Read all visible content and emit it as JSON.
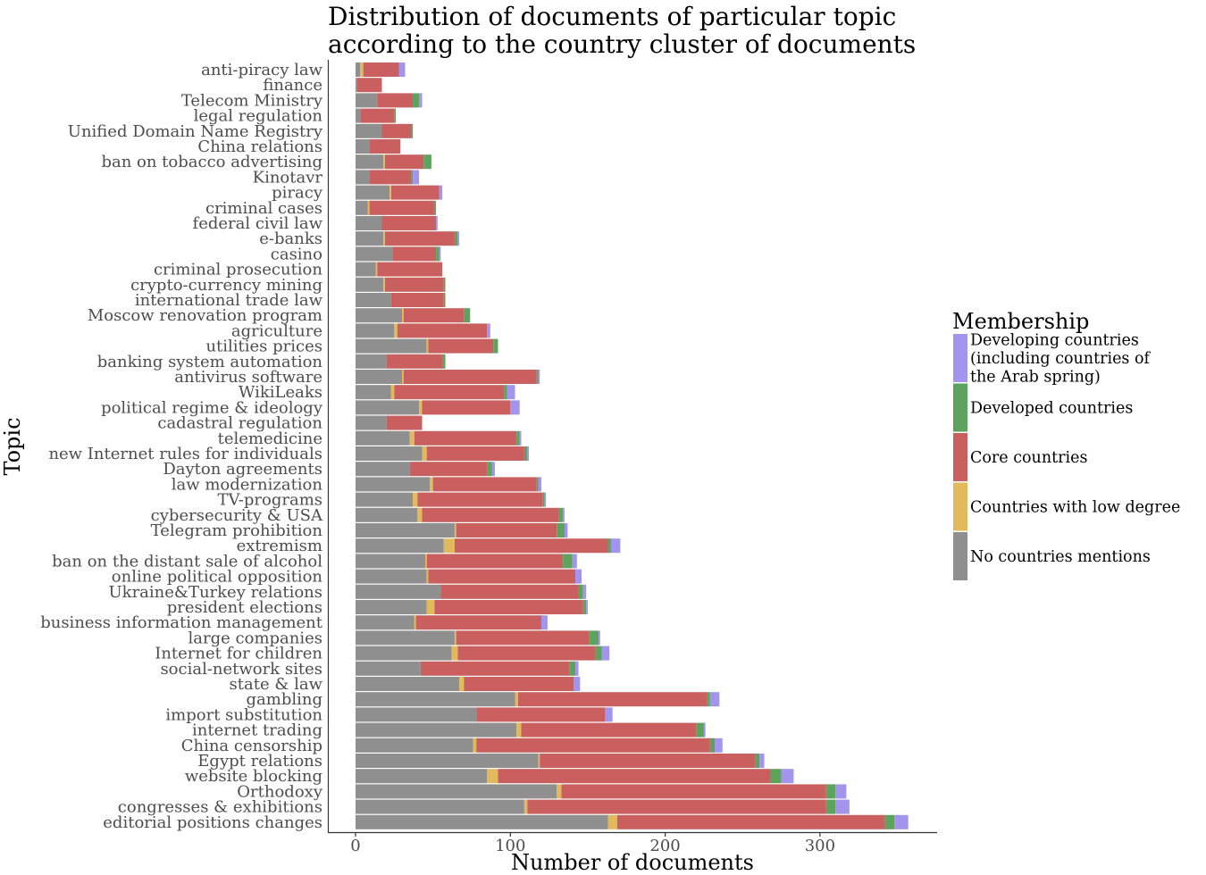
{
  "chart_data": {
    "type": "bar",
    "orientation": "horizontal",
    "stacked": true,
    "title_lines": [
      "Distribution of documents of particular topic",
      "according to the country cluster of documents"
    ],
    "xlabel": "Number of documents",
    "ylabel": "Topic",
    "xlim": [
      0,
      374
    ],
    "x_ticks": [
      0,
      100,
      200,
      300
    ],
    "grid": false,
    "legend": {
      "title": "Membership",
      "position": "right",
      "items": [
        {
          "lines": [
            "Developing countries",
            "(including countries of",
            "the Arab spring)"
          ],
          "color": "#A394EE"
        },
        {
          "lines": [
            "Developed countries"
          ],
          "color": "#5DA25D"
        },
        {
          "lines": [
            "Core countries"
          ],
          "color": "#C95F5F"
        },
        {
          "lines": [
            "Countries with low degree"
          ],
          "color": "#E2BA5E"
        },
        {
          "lines": [
            "No countries mentions"
          ],
          "color": "#8F8F8F"
        }
      ]
    },
    "series": [
      {
        "name": "No countries mentions",
        "color": "#8F8F8F"
      },
      {
        "name": "Countries with low degree",
        "color": "#E2BA5E"
      },
      {
        "name": "Core countries",
        "color": "#C95F5F"
      },
      {
        "name": "Developed countries",
        "color": "#5DA25D"
      },
      {
        "name": "Developing countries (including countries of the Arab spring)",
        "color": "#A394EE"
      }
    ],
    "rows": [
      {
        "topic": "anti-piracy law",
        "values": [
          3,
          2,
          23,
          0,
          4
        ]
      },
      {
        "topic": "finance",
        "values": [
          1,
          0,
          16,
          0,
          0
        ]
      },
      {
        "topic": "Telecom Ministry",
        "values": [
          14,
          0,
          23,
          4,
          2
        ]
      },
      {
        "topic": "legal regulation",
        "values": [
          3,
          0,
          22,
          1,
          0
        ]
      },
      {
        "topic": "Unified Domain Name Registry",
        "values": [
          17,
          0,
          19,
          1,
          0
        ]
      },
      {
        "topic": "China relations",
        "values": [
          9,
          0,
          20,
          0,
          0
        ]
      },
      {
        "topic": "ban on tobacco advertising",
        "values": [
          18,
          1,
          25,
          5,
          0
        ]
      },
      {
        "topic": "Kinotavr",
        "values": [
          9,
          0,
          27,
          1,
          4
        ]
      },
      {
        "topic": "piracy",
        "values": [
          22,
          1,
          31,
          0,
          2
        ]
      },
      {
        "topic": "criminal cases",
        "values": [
          8,
          1,
          42,
          1,
          0
        ]
      },
      {
        "topic": "federal civil law",
        "values": [
          17,
          0,
          35,
          0,
          1
        ]
      },
      {
        "topic": "e-banks",
        "values": [
          18,
          1,
          45,
          2,
          1
        ]
      },
      {
        "topic": "casino",
        "values": [
          24,
          0,
          28,
          2,
          1
        ]
      },
      {
        "topic": "criminal prosecution",
        "values": [
          13,
          1,
          42,
          0,
          0
        ]
      },
      {
        "topic": "crypto-currency mining",
        "values": [
          18,
          1,
          38,
          1,
          0
        ]
      },
      {
        "topic": "international trade law",
        "values": [
          23,
          0,
          34,
          1,
          0
        ]
      },
      {
        "topic": "Moscow renovation program",
        "values": [
          30,
          1,
          39,
          4,
          0
        ]
      },
      {
        "topic": "agriculture",
        "values": [
          25,
          2,
          58,
          0,
          2
        ]
      },
      {
        "topic": "utilities prices",
        "values": [
          46,
          1,
          42,
          3,
          0
        ]
      },
      {
        "topic": "banking system automation",
        "values": [
          20,
          0,
          36,
          2,
          0
        ]
      },
      {
        "topic": "antivirus software",
        "values": [
          30,
          1,
          86,
          1,
          1
        ]
      },
      {
        "topic": "WikiLeaks",
        "values": [
          23,
          2,
          71,
          2,
          5
        ]
      },
      {
        "topic": "political regime & ideology",
        "values": [
          41,
          2,
          57,
          0,
          6
        ]
      },
      {
        "topic": "cadastral regulation",
        "values": [
          20,
          0,
          23,
          0,
          0
        ]
      },
      {
        "topic": "telemedicine",
        "values": [
          35,
          3,
          66,
          2,
          1
        ]
      },
      {
        "topic": "new Internet rules for individuals",
        "values": [
          43,
          3,
          63,
          2,
          1
        ]
      },
      {
        "topic": "Dayton agreements",
        "values": [
          35,
          0,
          50,
          3,
          2
        ]
      },
      {
        "topic": "law modernization",
        "values": [
          48,
          2,
          67,
          1,
          2
        ]
      },
      {
        "topic": "TV-programs",
        "values": [
          37,
          3,
          81,
          1,
          1
        ]
      },
      {
        "topic": "cybersecurity & USA",
        "values": [
          40,
          3,
          88,
          3,
          1
        ]
      },
      {
        "topic": "Telegram prohibition",
        "values": [
          64,
          1,
          65,
          5,
          2
        ]
      },
      {
        "topic": "extremism",
        "values": [
          57,
          7,
          99,
          2,
          6
        ]
      },
      {
        "topic": "ban on the distant sale of alcohol",
        "values": [
          45,
          1,
          88,
          6,
          3
        ]
      },
      {
        "topic": "online political opposition",
        "values": [
          46,
          1,
          95,
          0,
          4
        ]
      },
      {
        "topic": "Ukraine&Turkey relations",
        "values": [
          55,
          0,
          89,
          3,
          2
        ]
      },
      {
        "topic": "president elections",
        "values": [
          46,
          5,
          96,
          2,
          1
        ]
      },
      {
        "topic": "business information management",
        "values": [
          38,
          1,
          81,
          0,
          4
        ]
      },
      {
        "topic": "large companies",
        "values": [
          64,
          1,
          86,
          6,
          1
        ]
      },
      {
        "topic": "Internet for children",
        "values": [
          62,
          4,
          89,
          4,
          5
        ]
      },
      {
        "topic": "social-network sites",
        "values": [
          42,
          0,
          96,
          4,
          2
        ]
      },
      {
        "topic": "state & law",
        "values": [
          67,
          3,
          71,
          0,
          4
        ]
      },
      {
        "topic": "gambling",
        "values": [
          103,
          2,
          122,
          2,
          6
        ]
      },
      {
        "topic": "import substitution",
        "values": [
          78,
          0,
          83,
          0,
          5
        ]
      },
      {
        "topic": "internet trading",
        "values": [
          104,
          3,
          113,
          5,
          1
        ]
      },
      {
        "topic": "China censorship",
        "values": [
          76,
          2,
          151,
          3,
          5
        ]
      },
      {
        "topic": "Egypt relations",
        "values": [
          118,
          1,
          139,
          3,
          3
        ]
      },
      {
        "topic": "website blocking",
        "values": [
          85,
          7,
          176,
          7,
          8
        ]
      },
      {
        "topic": "Orthodoxy",
        "values": [
          130,
          3,
          171,
          6,
          7
        ]
      },
      {
        "topic": "congresses & exhibitions",
        "values": [
          109,
          2,
          193,
          6,
          9
        ]
      },
      {
        "topic": "editorial positions changes",
        "values": [
          163,
          6,
          173,
          6,
          9
        ]
      }
    ]
  }
}
